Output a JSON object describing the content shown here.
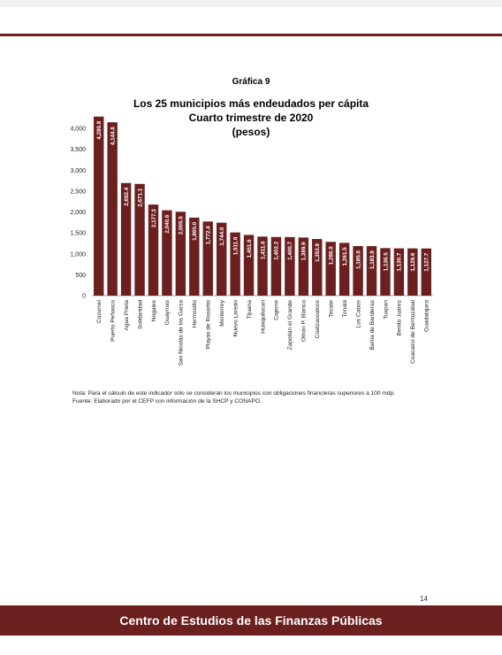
{
  "document": {
    "chart_number": "Gráfica 9",
    "note": "Nota: Para el cálculo de este indicador sólo se consideran los municipios con obligaciones financieras superiores a 100 mdp.",
    "source": "Fuente:  Elaborado por el CEFP con información de la SHCP y CONAPO.",
    "page_number": "14",
    "footer": "Centro de Estudios de las Finanzas Públicas"
  },
  "colors": {
    "bar": "#6b1f1f",
    "accent": "#6b1f1f"
  },
  "chart_data": {
    "type": "bar",
    "title": "Los 25 municipios más endeudados per cápita",
    "subtitle": "Cuarto trimestre de 2020",
    "unit_label": "(pesos)",
    "xlabel": "",
    "ylabel": "",
    "ylim": [
      0,
      4000
    ],
    "yticks": [
      0,
      500,
      1000,
      1500,
      2000,
      2500,
      3000,
      3500,
      4000
    ],
    "ytick_labels": [
      "0",
      "500",
      "1,000",
      "1,500",
      "2,000",
      "2,500",
      "3,000",
      "3,500",
      "4,000"
    ],
    "grid": false,
    "legend": "none",
    "categories": [
      "Cozumel",
      "Puerto Peñasco",
      "Agua Prieta",
      "Solidaridad",
      "Nogales",
      "Guaymas",
      "San Nicolás de los Garza",
      "Hermosillo",
      "Playas de Rosarito",
      "Monterrey",
      "Nuevo Laredo",
      "Tijuana",
      "Huixquilucan",
      "Cajeme",
      "Zapotlán el Grande",
      "Othón P. Blanco",
      "Coatzacoalcos",
      "Tecate",
      "Tonalá",
      "Los Cabos",
      "Bahía de Banderas",
      "Tuxpan",
      "Benito Juárez",
      "Coacalco de Berriozábal",
      "Guadalajara"
    ],
    "values": [
      4280.8,
      4144.6,
      2692.4,
      2671.1,
      2177.3,
      2040.6,
      2005.5,
      1865.0,
      1772.4,
      1744.0,
      1511.0,
      1451.6,
      1411.6,
      1402.2,
      1400.7,
      1389.9,
      1353.9,
      1286.0,
      1261.5,
      1185.0,
      1183.9,
      1136.5,
      1130.7,
      1129.6,
      1127.7
    ],
    "value_labels": [
      "4,280.8",
      "4,144.6",
      "2,692.4",
      "2,671.1",
      "2,177.3",
      "2,040.6",
      "2,005.5",
      "1,865.0",
      "1,772.4",
      "1,744.0",
      "1,511.0",
      "1,451.6",
      "1,411.6",
      "1,402.2",
      "1,400.7",
      "1,389.9",
      "1,353.9",
      "1,286.0",
      "1,261.5",
      "1,185.0",
      "1,183.9",
      "1,136.5",
      "1,130.7",
      "1,129.6",
      "1,127.7"
    ]
  }
}
